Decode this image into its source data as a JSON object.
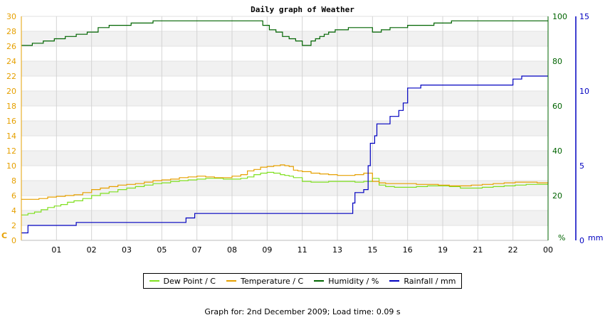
{
  "chart_data": {
    "type": "line",
    "title": "Daily graph of Weather",
    "x_tick_labels": [
      "01",
      "02",
      "03",
      "05",
      "07",
      "08",
      "09",
      "11",
      "13",
      "15",
      "16",
      "19",
      "21",
      "22",
      "00"
    ],
    "left_axis": {
      "unit_label": "C",
      "ylim": [
        0,
        30
      ],
      "ticks": [
        0,
        2,
        4,
        6,
        8,
        10,
        12,
        14,
        16,
        18,
        20,
        22,
        24,
        26,
        28,
        30
      ],
      "color": "#e6a000"
    },
    "right_axis_humidity": {
      "unit_label": "%",
      "ylim": [
        0,
        100
      ],
      "ticks": [
        0,
        20,
        40,
        60,
        80,
        100
      ],
      "color": "#006400"
    },
    "right_axis_rain": {
      "unit_label": "mm",
      "ylim": [
        0,
        15
      ],
      "ticks": [
        0,
        5,
        10,
        15
      ],
      "color": "#0000c0"
    },
    "grid": true,
    "legend_position": "bottom",
    "series": [
      {
        "name": "Dew Point / C",
        "axis": "left",
        "color": "#80e020",
        "x": [
          0,
          0.3,
          0.6,
          0.9,
          1.2,
          1.5,
          1.8,
          2.1,
          2.4,
          2.8,
          3.2,
          3.6,
          4.0,
          4.4,
          4.8,
          5.2,
          5.6,
          6.0,
          6.4,
          6.8,
          7.2,
          7.6,
          8.0,
          8.4,
          8.8,
          9.2,
          9.6,
          10.0,
          10.3,
          10.6,
          10.9,
          11.2,
          11.5,
          11.8,
          12.0,
          12.2,
          12.4,
          12.8,
          13.2,
          13.6,
          14.0,
          14.4,
          14.8,
          15.2,
          15.6,
          16.0,
          16.3,
          16.6,
          17.0,
          17.5,
          18.0,
          18.5,
          19.0,
          19.5,
          20.0,
          20.5,
          21.0,
          21.5,
          22.0,
          22.5,
          23.0,
          23.5,
          24
        ],
        "y": [
          3.4,
          3.6,
          3.8,
          4.1,
          4.4,
          4.6,
          4.8,
          5.1,
          5.3,
          5.6,
          6.0,
          6.3,
          6.5,
          6.8,
          7.0,
          7.2,
          7.4,
          7.6,
          7.7,
          7.9,
          8.0,
          8.1,
          8.2,
          8.3,
          8.3,
          8.2,
          8.2,
          8.3,
          8.5,
          8.8,
          9.0,
          9.1,
          9.0,
          8.8,
          8.7,
          8.6,
          8.4,
          7.9,
          7.8,
          7.8,
          7.9,
          7.9,
          7.9,
          7.8,
          7.9,
          8.3,
          7.4,
          7.2,
          7.1,
          7.1,
          7.2,
          7.3,
          7.3,
          7.2,
          7.0,
          7.0,
          7.1,
          7.2,
          7.3,
          7.4,
          7.5,
          7.5,
          7.5
        ]
      },
      {
        "name": "Temperature / C",
        "axis": "left",
        "color": "#e6a000",
        "x": [
          0,
          0.4,
          0.8,
          1.2,
          1.6,
          2.0,
          2.4,
          2.8,
          3.2,
          3.6,
          4.0,
          4.4,
          4.8,
          5.2,
          5.6,
          6.0,
          6.4,
          6.8,
          7.2,
          7.6,
          8.0,
          8.4,
          8.8,
          9.2,
          9.6,
          10.0,
          10.3,
          10.6,
          10.9,
          11.2,
          11.5,
          11.8,
          12.0,
          12.2,
          12.4,
          12.6,
          12.8,
          13.2,
          13.6,
          14.0,
          14.4,
          14.8,
          15.2,
          15.6,
          16.0,
          16.3,
          16.6,
          17.0,
          17.5,
          18.0,
          18.5,
          19.0,
          19.5,
          20.0,
          20.5,
          21.0,
          21.5,
          22.0,
          22.5,
          23.0,
          23.5,
          24
        ],
        "y": [
          5.5,
          5.5,
          5.6,
          5.8,
          5.9,
          6.0,
          6.1,
          6.4,
          6.8,
          7.0,
          7.2,
          7.4,
          7.5,
          7.6,
          7.8,
          8.0,
          8.1,
          8.2,
          8.4,
          8.5,
          8.6,
          8.5,
          8.4,
          8.4,
          8.6,
          8.8,
          9.3,
          9.5,
          9.8,
          9.9,
          10.0,
          10.1,
          10.0,
          9.9,
          9.4,
          9.3,
          9.2,
          9.0,
          8.9,
          8.8,
          8.7,
          8.7,
          8.8,
          9.0,
          7.9,
          7.7,
          7.6,
          7.6,
          7.6,
          7.5,
          7.5,
          7.4,
          7.3,
          7.3,
          7.4,
          7.5,
          7.6,
          7.7,
          7.8,
          7.8,
          7.7,
          7.6
        ]
      },
      {
        "name": "Humidity / %",
        "axis": "right_humidity",
        "color": "#006400",
        "x": [
          0,
          0.5,
          1.0,
          1.5,
          2.0,
          2.5,
          3.0,
          3.5,
          4.0,
          5.0,
          6.0,
          7.0,
          8.0,
          9.0,
          10.0,
          10.5,
          11.0,
          11.3,
          11.6,
          11.9,
          12.2,
          12.5,
          12.8,
          13.0,
          13.2,
          13.4,
          13.6,
          13.8,
          14.0,
          14.3,
          14.6,
          14.9,
          15.2,
          15.6,
          16.0,
          16.4,
          16.8,
          17.2,
          17.6,
          18.0,
          18.4,
          18.8,
          19.2,
          19.6,
          20.0,
          21.0,
          22.0,
          23.0,
          24
        ],
        "y": [
          87,
          88,
          89,
          90,
          91,
          92,
          93,
          95,
          96,
          97,
          98,
          98,
          98,
          98,
          98,
          98,
          96,
          94,
          93,
          91,
          90,
          89,
          87,
          87,
          89,
          90,
          91,
          92,
          93,
          94,
          94,
          95,
          95,
          95,
          93,
          94,
          95,
          95,
          96,
          96,
          96,
          97,
          97,
          98,
          98,
          98,
          98,
          98,
          98
        ]
      },
      {
        "name": "Rainfall / mm",
        "axis": "right_rain",
        "color": "#0000c0",
        "x": [
          0,
          0.3,
          0.3,
          2.5,
          2.5,
          7.5,
          7.5,
          7.9,
          7.9,
          15.1,
          15.1,
          15.2,
          15.6,
          15.8,
          15.9,
          16.1,
          16.2,
          16.3,
          16.5,
          16.8,
          17.2,
          17.4,
          17.6,
          18.0,
          18.2,
          18.4,
          18.6,
          22.2,
          22.4,
          22.8,
          23.0,
          24
        ],
        "y": [
          0.5,
          0.5,
          1.0,
          1.0,
          1.2,
          1.2,
          1.5,
          1.5,
          1.8,
          1.8,
          2.5,
          3.2,
          3.4,
          5.0,
          6.5,
          7.0,
          7.8,
          7.8,
          7.8,
          8.3,
          8.7,
          9.2,
          10.2,
          10.2,
          10.4,
          10.4,
          10.4,
          10.4,
          10.8,
          11.0,
          11.0,
          11.0
        ]
      }
    ]
  },
  "footer_text": "Graph for: 2nd December 2009; Load time: 0.09 s"
}
